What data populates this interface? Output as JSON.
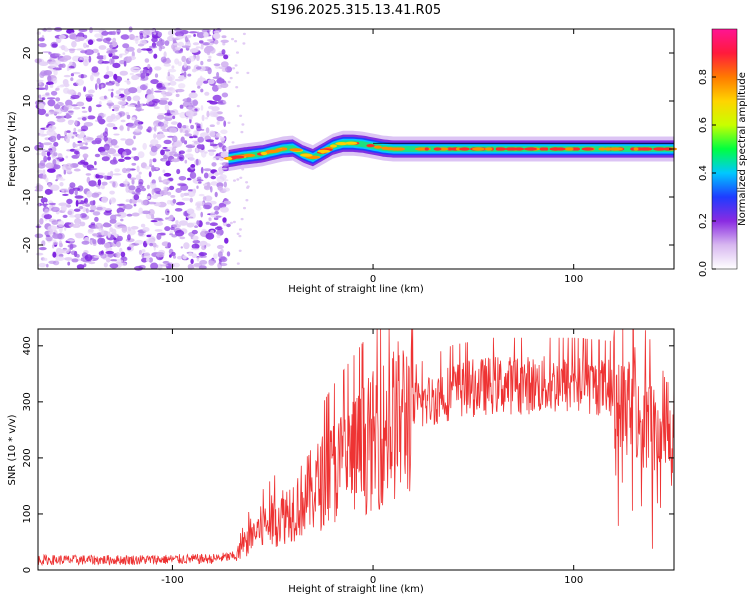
{
  "figure_title": "S196.2025.315.13.41.R05",
  "chart_data": [
    {
      "type": "heatmap",
      "panel": "spectrogram",
      "xlabel": "Height of straight line (km)",
      "ylabel": "Frequency (Hz)",
      "xlim": [
        -167,
        150
      ],
      "ylim": [
        -25,
        25
      ],
      "xticks": [
        -100,
        0,
        100
      ],
      "yticks": [
        -20,
        -10,
        0,
        10,
        20
      ],
      "colorbar": {
        "label": "Normalized spectral amplitude",
        "range": [
          0,
          1
        ],
        "ticks": [
          0.0,
          0.2,
          0.4,
          0.6,
          0.8
        ],
        "colors": [
          "#ffffff",
          "#d8b8f0",
          "#8a2be2",
          "#1e3cff",
          "#00c8ff",
          "#00ff40",
          "#c8ff00",
          "#ffd400",
          "#ff7a00",
          "#ff1a3c",
          "#ff1493"
        ]
      },
      "noise_region": {
        "x_from": -167,
        "x_to": -72,
        "description": "broadband purple noise"
      },
      "ridge": {
        "x": [
          -72,
          -65,
          -55,
          -45,
          -40,
          -35,
          -30,
          -25,
          -20,
          -15,
          -10,
          -5,
          0,
          5,
          10,
          20,
          40,
          60,
          80,
          100,
          120,
          150
        ],
        "y": [
          -2,
          -1.5,
          -1,
          0,
          0.2,
          -1,
          -1.8,
          -0.6,
          0.6,
          1.2,
          1.2,
          1,
          0.6,
          0.2,
          0,
          0,
          0,
          0,
          0,
          0,
          0,
          0
        ]
      }
    },
    {
      "type": "line",
      "panel": "snr",
      "xlabel": "Height of straight line (km)",
      "ylabel": "SNR (10 * v/v)",
      "xlim": [
        -167,
        150
      ],
      "ylim": [
        0,
        430
      ],
      "xticks": [
        -100,
        0,
        100
      ],
      "yticks": [
        0,
        100,
        200,
        300,
        400
      ],
      "series": [
        {
          "name": "SNR",
          "color": "#ee3333",
          "envelope": {
            "x": [
              -167,
              -120,
              -80,
              -68,
              -60,
              -40,
              -20,
              0,
              20,
              40,
              60,
              80,
              100,
              120,
              130,
              140,
              145,
              150
            ],
            "y": [
              18,
              18,
              20,
              25,
              65,
              110,
              175,
              230,
              290,
              320,
              330,
              330,
              330,
              325,
              300,
              255,
              280,
              300
            ]
          }
        }
      ]
    }
  ]
}
